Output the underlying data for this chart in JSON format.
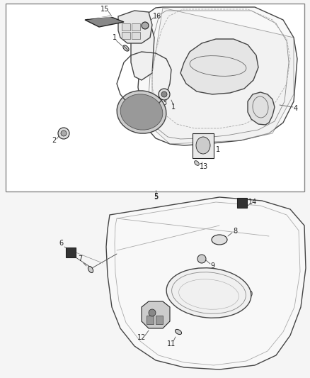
{
  "bg_color": "#f0f0f0",
  "line_color": "#444444",
  "dark_color": "#222222",
  "fig_width": 4.38,
  "fig_height": 5.33,
  "dpi": 100
}
